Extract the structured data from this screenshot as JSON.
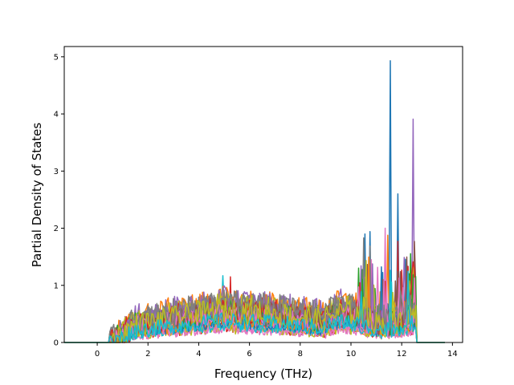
{
  "chart_data": {
    "type": "line",
    "title": "",
    "xlabel": "Frequency (THz)",
    "ylabel": "Partial Density of States",
    "xlim": [
      -1.3,
      14.4
    ],
    "ylim": [
      0,
      5.18
    ],
    "xticks": [
      0,
      2,
      4,
      6,
      8,
      10,
      12,
      14
    ],
    "yticks": [
      0,
      1,
      2,
      3,
      4,
      5
    ],
    "grid": false,
    "legend": "none",
    "note_series": "many overlapping PDOS curves (one per projection); shown with matplotlib default color cycle",
    "colors": [
      "#1f77b4",
      "#ff7f0e",
      "#2ca02c",
      "#d62728",
      "#9467bd",
      "#8c564b",
      "#e377c2",
      "#7f7f7f",
      "#bcbd22",
      "#17becf"
    ],
    "series_count": 30,
    "peaks": [
      {
        "color_index": 0,
        "x": 11.55,
        "y": 4.93
      },
      {
        "color_index": 4,
        "x": 12.45,
        "y": 3.91
      },
      {
        "color_index": 0,
        "x": 11.85,
        "y": 2.6
      },
      {
        "color_index": 0,
        "x": 10.75,
        "y": 1.94
      },
      {
        "color_index": 0,
        "x": 10.55,
        "y": 1.9
      },
      {
        "color_index": 6,
        "x": 11.35,
        "y": 2.0
      },
      {
        "color_index": 3,
        "x": 11.85,
        "y": 1.77
      },
      {
        "color_index": 9,
        "x": 4.95,
        "y": 1.17
      },
      {
        "color_index": 3,
        "x": 5.25,
        "y": 1.15
      }
    ],
    "support_range": [
      0.4,
      12.6
    ],
    "baseline_range": [
      -1.3,
      13.7
    ]
  }
}
